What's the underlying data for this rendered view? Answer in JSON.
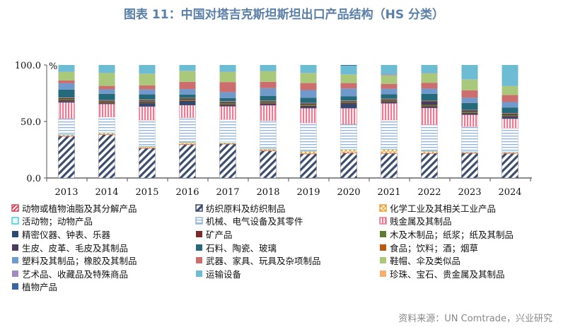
{
  "title": "图表 11：中国对塔吉克斯坦斯坦出口产品结构（HS 分类）",
  "source": "资料来源：UN Comtrade，兴业研究",
  "chart_data": {
    "type": "bar",
    "stacked": true,
    "title": "图表 11：中国对塔吉克斯坦斯坦出口产品结构（HS 分类）",
    "ylabel": "%",
    "ylim": [
      0,
      100
    ],
    "yticks": [
      "0.0",
      "50.0",
      "100.0"
    ],
    "categories": [
      "2013",
      "2014",
      "2015",
      "2016",
      "2017",
      "2018",
      "2019",
      "2020",
      "2021",
      "2022",
      "2023",
      "2024"
    ],
    "legend_position": "bottom",
    "series": [
      {
        "name": "动物或植物油脂及其分解产品",
        "color": "#e0405a",
        "pattern": "hatch-red",
        "values": [
          0.3,
          0.3,
          0.3,
          0.3,
          0.3,
          0.3,
          0.3,
          0.3,
          0.3,
          0.3,
          0.3,
          0.3
        ]
      },
      {
        "name": "纺织原料及纺织制品",
        "color": "#3d4d6e",
        "pattern": "hatch-navy",
        "values": [
          36.9,
          38.3,
          26.3,
          29.6,
          30,
          24,
          21.3,
          22,
          21.7,
          21.7,
          21.9,
          21.7
        ]
      },
      {
        "name": "化学工业及其相关工业产品",
        "color": "#f0a030",
        "pattern": "cross-orange",
        "values": [
          1,
          1.2,
          1.2,
          1.7,
          0.8,
          1.4,
          2,
          2.7,
          3.3,
          1.7,
          0.8,
          0.8
        ]
      },
      {
        "name": "活动物；动物产品",
        "color": "#40d0e0",
        "pattern": "outline-cyan",
        "values": [
          0.3,
          0.3,
          0.4,
          0.3,
          1.4,
          0.3,
          0.3,
          0.3,
          0.3,
          0.3,
          0.3,
          0.3
        ]
      },
      {
        "name": "机械、电气设备及其零件",
        "color": "#8fb4dc",
        "pattern": "hlines-blue",
        "values": [
          14,
          13.9,
          23,
          21.5,
          19.3,
          24.8,
          24.8,
          22.4,
          25.7,
          23.2,
          22.2,
          21
        ]
      },
      {
        "name": "贱金属及其制品",
        "color": "#f07890",
        "pattern": "vlines-pink",
        "values": [
          14.3,
          11.4,
          12,
          11,
          11.6,
          13.5,
          13,
          14,
          14.7,
          14.7,
          10.4,
          8.3
        ]
      },
      {
        "name": "精密仪器、钟表、乐器",
        "color": "#2e4a72",
        "values": [
          1.2,
          0.6,
          2.9,
          3.1,
          1,
          1,
          1.4,
          3.9,
          1,
          1,
          1,
          1.7
        ]
      },
      {
        "name": "矿产品",
        "color": "#7a2a2a",
        "values": [
          0.8,
          0.8,
          0.8,
          0.8,
          0.8,
          0.8,
          0.8,
          0.8,
          0.8,
          0.8,
          0.8,
          0.8
        ]
      },
      {
        "name": "木及木制品；纸浆；纸及其制品",
        "color": "#5e7a30",
        "values": [
          0.95,
          0.8,
          1,
          1,
          1.1,
          0.9,
          1,
          0.8,
          0.9,
          1,
          1,
          1
        ]
      },
      {
        "name": "生皮、皮革、毛皮及其制品",
        "color": "#4a3a5e",
        "values": [
          0.95,
          0.8,
          1,
          1,
          1.1,
          0.9,
          1,
          0.8,
          0.9,
          3.1,
          1,
          1
        ]
      },
      {
        "name": "石料、陶瓷、玻璃",
        "color": "#246a7a",
        "values": [
          7,
          5.6,
          4.6,
          3.1,
          2.9,
          4.3,
          4.6,
          3.7,
          4.1,
          6.2,
          6.2,
          5
        ]
      },
      {
        "name": "食品；饮料；酒；烟草",
        "color": "#b85a10",
        "values": [
          0.3,
          0.3,
          0.3,
          0.3,
          0.3,
          0.3,
          0.3,
          0.3,
          0.3,
          0.3,
          0.3,
          0.3
        ]
      },
      {
        "name": "塑料及其制品；橡胶及其制品",
        "color": "#7099cc",
        "values": [
          5.6,
          3.9,
          4.3,
          4.8,
          5.2,
          6.8,
          6.8,
          7,
          4.8,
          4.6,
          4.6,
          4.8
        ]
      },
      {
        "name": "武器、家具、玩具及杂项制品",
        "color": "#cc6e6e",
        "values": [
          2.5,
          3.1,
          3.7,
          6.4,
          8.9,
          5.6,
          6.2,
          4.8,
          4.3,
          5.2,
          6.6,
          6.2
        ]
      },
      {
        "name": "鞋帽、伞及类似品",
        "color": "#aac87a",
        "values": [
          7.5,
          11.4,
          10.1,
          9.5,
          8.9,
          9.3,
          8.7,
          7.5,
          7.5,
          8.3,
          9.5,
          7.9
        ]
      },
      {
        "name": "艺术品、收藏品及特殊商品",
        "color": "#a08cc0",
        "values": [
          0.2,
          0.2,
          0.2,
          0.2,
          0.2,
          0.2,
          0.2,
          0.2,
          1,
          0.2,
          0.2,
          0.2
        ]
      },
      {
        "name": "运输设备",
        "color": "#6cbcd4",
        "values": [
          6.6,
          7.9,
          7.9,
          5.8,
          6.6,
          6.2,
          7.9,
          7.7,
          8.9,
          9.3,
          12.8,
          19
        ]
      },
      {
        "name": "珍珠、宝石、贵金属及其制品",
        "color": "#f5b070",
        "values": [
          0.2,
          0.2,
          0.2,
          0.2,
          0.2,
          0.2,
          0.2,
          0.2,
          0.2,
          0.2,
          0.2,
          0.2
        ]
      },
      {
        "name": "植物产品",
        "color": "#3a64a0",
        "values": [
          0.3,
          0.3,
          0.3,
          0.3,
          0.3,
          0.3,
          0.3,
          1.4,
          0.3,
          0.3,
          0.3,
          0.3
        ]
      }
    ]
  }
}
